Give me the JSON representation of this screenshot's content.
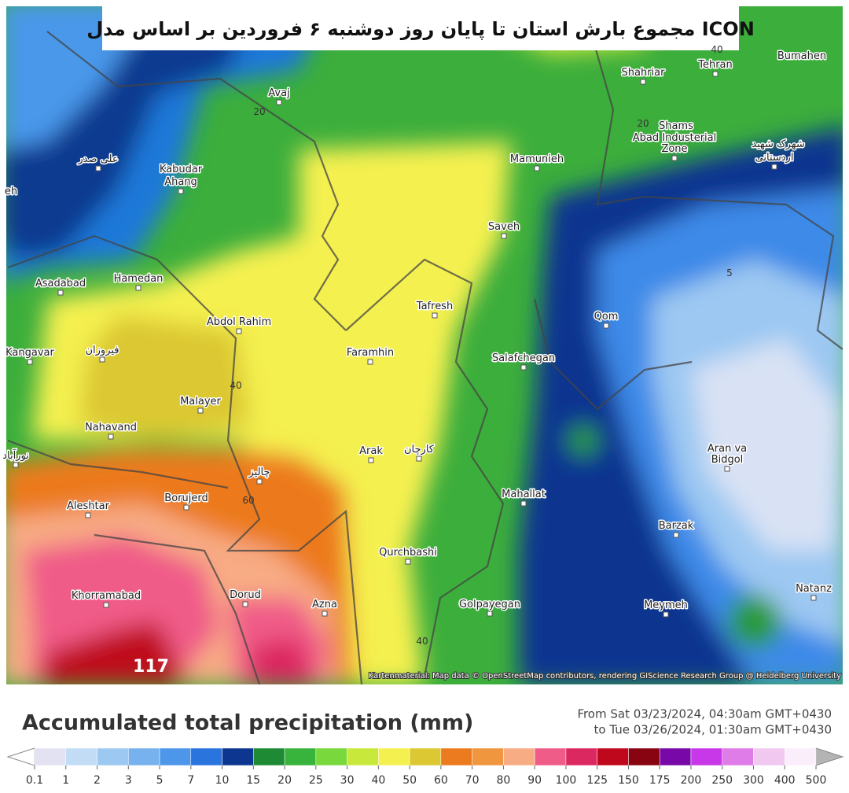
{
  "header": {
    "title": "مجموع بارش استان تا پایان روز دوشنبه ۶ فروردین  بر اساس مدل ICON"
  },
  "map": {
    "places": [
      "Avaj",
      "Tehran",
      "Shahriar",
      "Bumahen",
      "Shams",
      "Abad Industerial",
      "Zone",
      "شهرک شهید",
      "اردستانی",
      "علی صدر",
      "Kabudar",
      "Ahang",
      "eh",
      "Mamunieh",
      "Saveh",
      "Asadabad",
      "Hamedan",
      "Tafresh",
      "Qom",
      "Abdol Rahim",
      "Kangavar",
      "فیروزان",
      "Faramhin",
      "Salafchegan",
      "Malayer",
      "Nahavand",
      "Aran va",
      "Bidgol",
      "Arak",
      "کارچان",
      "نورآباد",
      "چالیز",
      "Borujerd",
      "Aleshtar",
      "Mahallat",
      "Barzak",
      "Qurchbashi",
      "Natanz",
      "Khorramabad",
      "Dorud",
      "Azna",
      "Golpayegan",
      "Meymeh"
    ],
    "contour_labels": [
      "20",
      "20",
      "40",
      "60",
      "40",
      "5",
      "40"
    ],
    "max_label": "117",
    "attribution": "Kartenmaterial: Map data © OpenStreetMap contributors, rendering GIScience Research Group @ Heidelberg University"
  },
  "legend": {
    "title": "Accumulated total precipitation (mm)",
    "from": "From Sat 03/23/2024, 04:30am GMT+0430",
    "to": "to Tue 03/26/2024, 01:30am GMT+0430",
    "ticks": [
      "0.1",
      "1",
      "2",
      "3",
      "5",
      "7",
      "10",
      "15",
      "20",
      "25",
      "30",
      "40",
      "50",
      "60",
      "70",
      "80",
      "90",
      "100",
      "125",
      "150",
      "175",
      "200",
      "250",
      "300",
      "400",
      "500"
    ],
    "colors": [
      "#e2e2f2",
      "#c2dcf6",
      "#9cc8f2",
      "#78b2ee",
      "#4e96ea",
      "#2a74de",
      "#0c3690",
      "#1e8a34",
      "#38b43c",
      "#78d83c",
      "#c8e83c",
      "#f4f050",
      "#dcc832",
      "#ec7a1e",
      "#f0963e",
      "#f8ac84",
      "#f05c88",
      "#dc2860",
      "#c0081c",
      "#880410",
      "#7808a8",
      "#c838e8",
      "#e07ce8",
      "#f0c8f0",
      "#faeefa"
    ],
    "end_colors": [
      "#ffffff",
      "#b4b4b4"
    ]
  }
}
